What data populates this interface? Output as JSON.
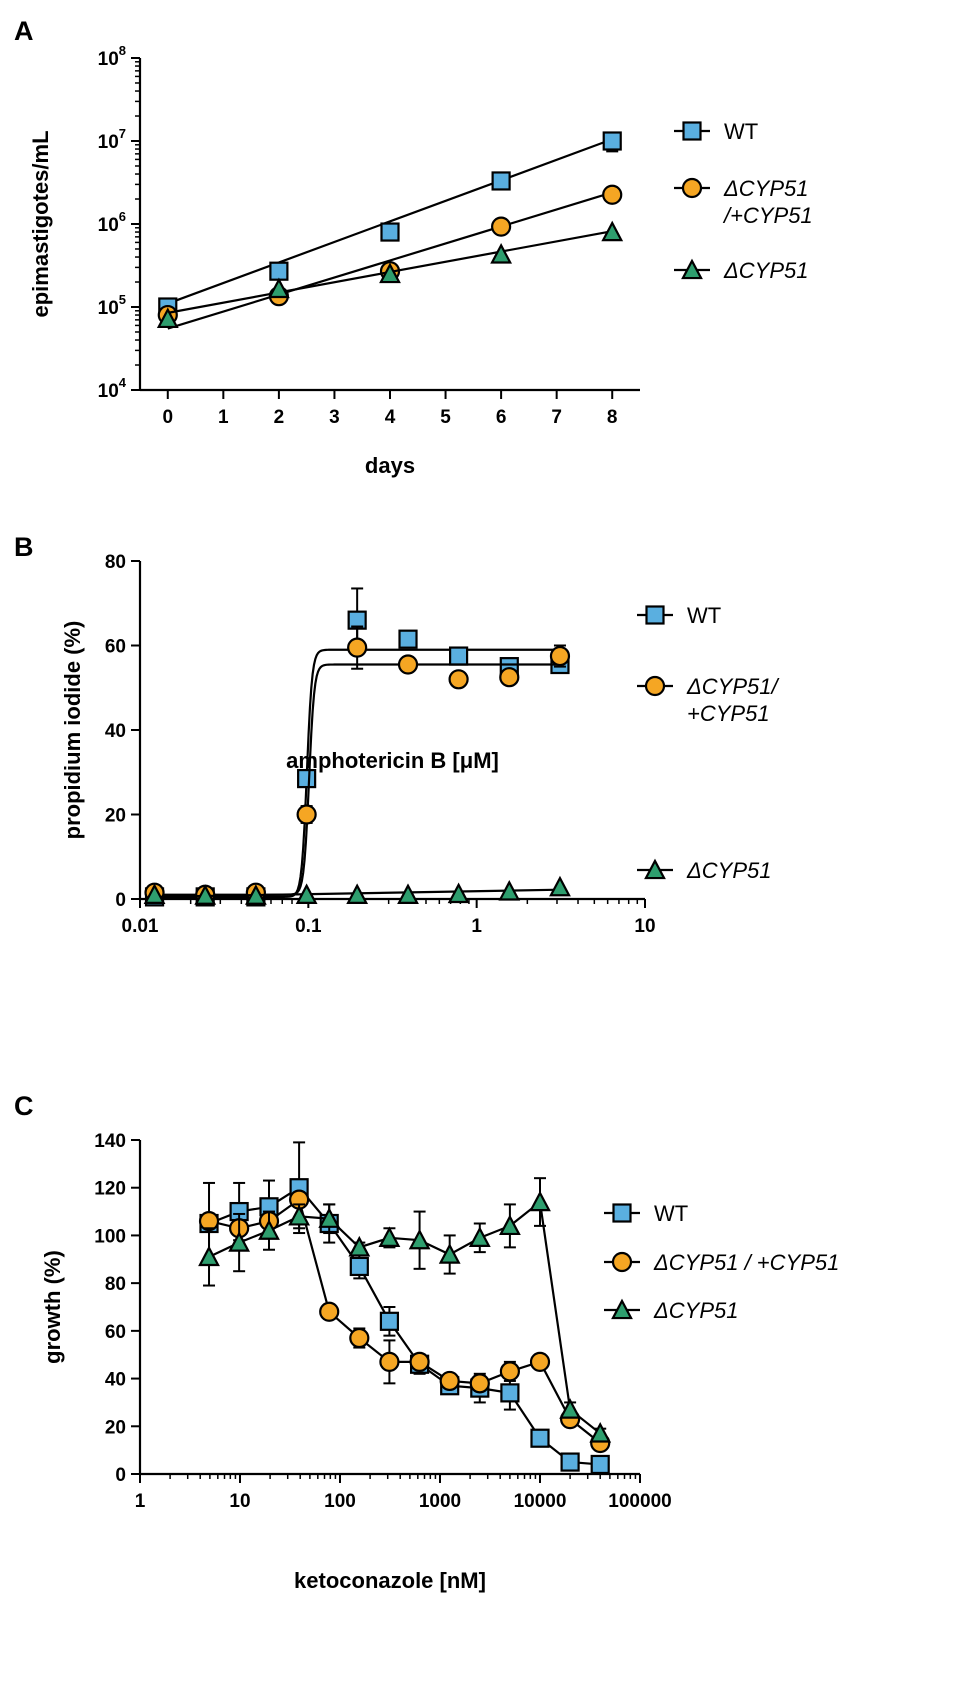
{
  "colors": {
    "WT": "#5aafe0",
    "dCYP51_addback": "#f5a623",
    "dCYP51": "#2e9e6e",
    "axis": "#000000"
  },
  "chart_data": [
    {
      "panel": "A",
      "type": "line",
      "xlabel": "days",
      "ylabel": "epimastigotes/mL",
      "xscale": "linear",
      "yscale": "log",
      "xlim": [
        -0.5,
        8.5
      ],
      "ylim": [
        10000,
        100000000
      ],
      "xticks": [
        0,
        1,
        2,
        3,
        4,
        5,
        6,
        7,
        8
      ],
      "xtick_labels": [
        "0",
        "1",
        "2",
        "3",
        "4",
        "5",
        "6",
        "7",
        "8"
      ],
      "yticks": [
        10000,
        100000,
        1000000,
        10000000,
        100000000
      ],
      "ytick_labels": [
        {
          "base": "10",
          "exp": "4"
        },
        {
          "base": "10",
          "exp": "5"
        },
        {
          "base": "10",
          "exp": "6"
        },
        {
          "base": "10",
          "exp": "7"
        },
        {
          "base": "10",
          "exp": "8"
        }
      ],
      "series": [
        {
          "name": "WT",
          "label_lines": [
            "WT"
          ],
          "marker": "square",
          "color_key": "WT",
          "x": [
            0,
            2,
            4,
            6,
            8
          ],
          "y": [
            100000,
            270000,
            800000,
            3300000,
            10000000
          ],
          "err": [
            0,
            0,
            0,
            0,
            2500000
          ],
          "fit": [
            110000,
            10500000
          ]
        },
        {
          "name": "ΔCYP51/+CYP51",
          "label_lines": [
            "ΔCYP51",
            "/+CYP51"
          ],
          "marker": "circle",
          "color_key": "dCYP51_addback",
          "x": [
            0,
            2,
            4,
            6,
            8
          ],
          "y": [
            80000,
            135000,
            270000,
            930000,
            2250000
          ],
          "err": [
            0,
            0,
            0,
            0,
            0
          ],
          "fit": [
            55000,
            2400000
          ]
        },
        {
          "name": "ΔCYP51",
          "label_lines": [
            "ΔCYP51"
          ],
          "marker": "triangle",
          "color_key": "dCYP51",
          "x": [
            0,
            2,
            4,
            6,
            8
          ],
          "y": [
            72000,
            165000,
            250000,
            430000,
            800000
          ],
          "err": [
            0,
            0,
            0,
            0,
            0
          ],
          "fit": [
            85000,
            820000
          ]
        }
      ]
    },
    {
      "panel": "B",
      "type": "scatter",
      "xlabel": "amphotericin B [μM]",
      "ylabel": "propidium iodide (%)",
      "xscale": "log",
      "yscale": "linear",
      "xlim": [
        0.01,
        10
      ],
      "ylim": [
        0,
        80
      ],
      "xticks": [
        0.01,
        0.1,
        1,
        10
      ],
      "xtick_labels": [
        "0.01",
        "0.1",
        "1",
        "10"
      ],
      "yticks": [
        0,
        20,
        40,
        60,
        80
      ],
      "ytick_labels": [
        "0",
        "20",
        "40",
        "60",
        "80"
      ],
      "series": [
        {
          "name": "WT",
          "label_lines": [
            "WT"
          ],
          "marker": "square",
          "color_key": "WT",
          "x": [
            0.0122,
            0.0244,
            0.0488,
            0.0977,
            0.195,
            0.391,
            0.781,
            1.5625,
            3.125
          ],
          "y": [
            0.5,
            0.5,
            0.5,
            28.5,
            66,
            61.5,
            57.5,
            55,
            55.5
          ],
          "err": [
            0,
            0,
            0,
            0,
            7.5,
            0,
            0,
            0,
            0
          ],
          "fit": {
            "bottom": 0.5,
            "top": 59,
            "ec50": 0.098,
            "hill": 28
          }
        },
        {
          "name": "ΔCYP51/+CYP51",
          "label_lines": [
            "ΔCYP51/",
            "+CYP51"
          ],
          "marker": "circle",
          "color_key": "dCYP51_addback",
          "x": [
            0.0122,
            0.0244,
            0.0488,
            0.0977,
            0.195,
            0.391,
            0.781,
            1.5625,
            3.125
          ],
          "y": [
            1.5,
            1,
            1.5,
            20,
            59.5,
            55.5,
            52,
            52.5,
            57.5
          ],
          "err": [
            0,
            0,
            0,
            2,
            5,
            0,
            0,
            0,
            2.5
          ],
          "fit": {
            "bottom": 1,
            "top": 55.5,
            "ec50": 0.101,
            "hill": 28
          }
        },
        {
          "name": "ΔCYP51",
          "label_lines": [
            "ΔCYP51"
          ],
          "marker": "triangle",
          "color_key": "dCYP51",
          "x": [
            0.0122,
            0.0244,
            0.0488,
            0.0977,
            0.195,
            0.391,
            0.781,
            1.5625,
            3.125
          ],
          "y": [
            1,
            0.8,
            0.8,
            1,
            1,
            1,
            1.2,
            1.8,
            2.8
          ],
          "err": [
            0,
            0,
            0,
            0,
            0,
            0,
            0,
            0,
            0
          ],
          "fit_line": [
            [
              0.0122,
              0.5
            ],
            [
              3.125,
              2.2
            ]
          ]
        }
      ]
    },
    {
      "panel": "C",
      "type": "line",
      "xlabel": "ketoconazole [nM]",
      "ylabel": "growth (%)",
      "xscale": "log",
      "yscale": "linear",
      "xlim": [
        1,
        100000
      ],
      "ylim": [
        0,
        140
      ],
      "xticks": [
        1,
        10,
        100,
        1000,
        10000,
        100000
      ],
      "xtick_labels": [
        "1",
        "10",
        "100",
        "1000",
        "10000",
        "100000"
      ],
      "yticks": [
        0,
        20,
        40,
        60,
        80,
        100,
        120,
        140
      ],
      "ytick_labels": [
        "0",
        "20",
        "40",
        "60",
        "80",
        "100",
        "120",
        "140"
      ],
      "series": [
        {
          "name": "WT",
          "label_lines": [
            "WT"
          ],
          "marker": "square",
          "color_key": "WT",
          "x": [
            4.9,
            9.8,
            19.5,
            39,
            78,
            156,
            312,
            625,
            1250,
            2500,
            5000,
            10000,
            20000,
            40000
          ],
          "y": [
            105,
            110,
            112,
            120,
            105,
            87,
            64,
            46,
            37,
            36,
            34,
            15,
            5,
            4
          ],
          "err": [
            17,
            12,
            11,
            19,
            8,
            5,
            6,
            4,
            3,
            6,
            7,
            2,
            1,
            1
          ]
        },
        {
          "name": "ΔCYP51 / +CYP51",
          "label_lines": [
            "ΔCYP51 / +CYP51"
          ],
          "marker": "circle",
          "color_key": "dCYP51_addback",
          "x": [
            4.9,
            9.8,
            19.5,
            39,
            78,
            156,
            312,
            625,
            1250,
            2500,
            5000,
            10000,
            20000,
            40000
          ],
          "y": [
            106,
            103,
            106,
            115,
            68,
            57,
            47,
            47,
            39,
            38,
            43,
            47,
            23,
            13
          ],
          "err": [
            0,
            0,
            0,
            0,
            3,
            4,
            9,
            3,
            2,
            3,
            4,
            3,
            3,
            3
          ]
        },
        {
          "name": "ΔCYP51",
          "label_lines": [
            "ΔCYP51"
          ],
          "marker": "triangle",
          "color_key": "dCYP51",
          "x": [
            4.9,
            9.8,
            19.5,
            39,
            78,
            156,
            312,
            625,
            1250,
            2500,
            5000,
            10000,
            20000,
            40000
          ],
          "y": [
            91,
            97,
            102,
            108,
            107,
            95,
            99,
            98,
            92,
            99,
            104,
            114,
            27,
            17
          ],
          "err": [
            12,
            12,
            8,
            5,
            6,
            2,
            4,
            12,
            8,
            6,
            9,
            10,
            3,
            2
          ]
        }
      ]
    }
  ]
}
